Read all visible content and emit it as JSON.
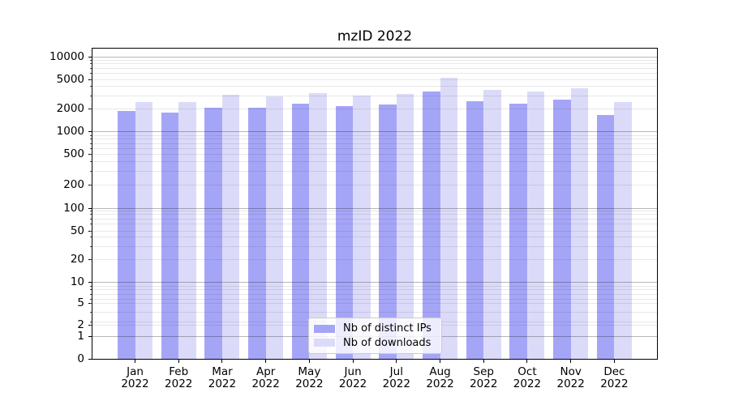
{
  "figure": {
    "title": "mzID 2022"
  },
  "chart_data": {
    "type": "bar",
    "title": "mzID 2022",
    "categories": [
      "Jan 2022",
      "Feb 2022",
      "Mar 2022",
      "Apr 2022",
      "May 2022",
      "Jun 2022",
      "Jul 2022",
      "Aug 2022",
      "Sep 2022",
      "Oct 2022",
      "Nov 2022",
      "Dec 2022"
    ],
    "series": [
      {
        "name": "Nb of distinct IPs",
        "color": "#a5a5f7",
        "values": [
          1850,
          1770,
          2050,
          2060,
          2340,
          2170,
          2290,
          3350,
          2520,
          2320,
          2670,
          1670
        ]
      },
      {
        "name": "Nb of downloads",
        "color": "#dbdbf9",
        "values": [
          2480,
          2430,
          3050,
          2900,
          3250,
          3000,
          3150,
          5100,
          3550,
          3400,
          3750,
          2480
        ]
      }
    ],
    "yscale": "symlog",
    "ylim": [
      0,
      12800
    ],
    "y_ticks": [
      10000,
      5000,
      2000,
      1000,
      500,
      200,
      100,
      50,
      20,
      10,
      5,
      2,
      1,
      0
    ],
    "grid": true,
    "legend_position": "lower center",
    "colors": {
      "bar_distinct_ips": "#a5a5f7",
      "bar_downloads": "#dbdbf9",
      "grid_major": "rgba(0,0,0,0.28)",
      "grid_minor": "rgba(0,0,0,0.09)",
      "spine": "#000000"
    }
  }
}
